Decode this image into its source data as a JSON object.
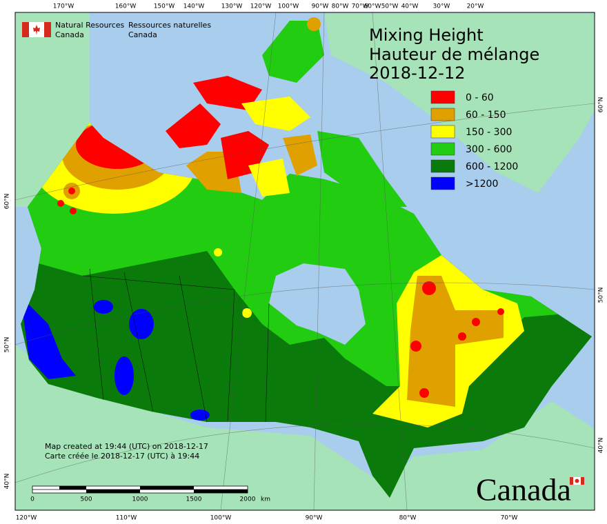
{
  "header": {
    "agency_en": [
      "Natural Resources",
      "Canada"
    ],
    "agency_fr": [
      "Ressources naturelles",
      "Canada"
    ]
  },
  "title": [
    "Mixing Height",
    "Hauteur de mélange",
    "2018-12-12"
  ],
  "legend": [
    {
      "label": "0 - 60",
      "color": "#ff0000"
    },
    {
      "label": "60 - 150",
      "color": "#e0a000"
    },
    {
      "label": "150 - 300",
      "color": "#ffff00"
    },
    {
      "label": "300 - 600",
      "color": "#22cc11"
    },
    {
      "label": "600 - 1200",
      "color": "#0a7a0a"
    },
    {
      "label": ">1200",
      "color": "#0000ff"
    }
  ],
  "graticule": {
    "top": [
      "170°W",
      "160°W",
      "150°W",
      "140°W",
      "130°W",
      "120°W",
      "100°W",
      "90°W",
      "80°W",
      "70°W",
      "60°W",
      "50°W",
      "40°W",
      "30°W",
      "20°W"
    ],
    "bottom": [
      "120°W",
      "110°W",
      "100°W",
      "90°W",
      "80°W",
      "70°W"
    ],
    "left": [
      "60°N",
      "50°N",
      "40°N"
    ],
    "right": [
      "60°N",
      "50°N",
      "40°N"
    ]
  },
  "credits": [
    "Map created at 19:44 (UTC) on 2018-12-17",
    "Carte créée le 2018-12-17 (UTC) à 19:44"
  ],
  "scale_bar": {
    "labels": [
      "0",
      "500",
      "1000",
      "1500",
      "2000"
    ],
    "unit": "km"
  },
  "wordmark": "Canada"
}
